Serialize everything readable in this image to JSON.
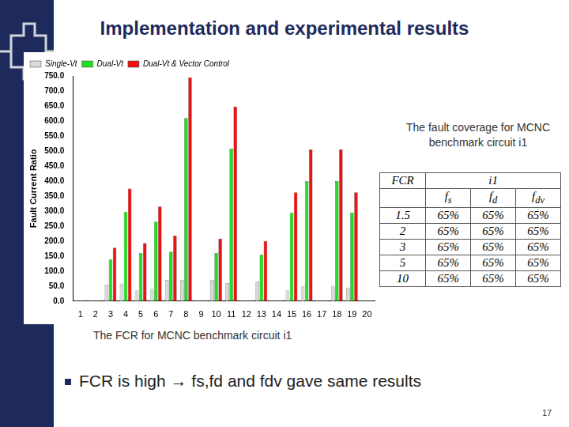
{
  "slide": {
    "title": "Implementation and experimental results",
    "chart_caption": "The FCR for MCNC benchmark circuit i1",
    "table_caption": "The fault coverage for MCNC benchmark circuit i1",
    "bullet": "FCR is high → fs,fd and fdv gave same results",
    "page_number": "17"
  },
  "table": {
    "header": [
      "FCR",
      "i1"
    ],
    "columns": [
      {
        "text": "f",
        "sub": "s"
      },
      {
        "text": "f",
        "sub": "d"
      },
      {
        "text": "f",
        "sub": "dv"
      }
    ],
    "rows": [
      [
        "1.5",
        "65%",
        "65%",
        "65%"
      ],
      [
        "2",
        "65%",
        "65%",
        "65%"
      ],
      [
        "3",
        "65%",
        "65%",
        "65%"
      ],
      [
        "5",
        "65%",
        "65%",
        "65%"
      ],
      [
        "10",
        "65%",
        "65%",
        "65%"
      ]
    ]
  },
  "chart_data": {
    "type": "bar",
    "y_label": "Fault Current Ratio",
    "categories": [
      "1",
      "2",
      "3",
      "4",
      "5",
      "6",
      "7",
      "8",
      "9",
      "10",
      "11",
      "12",
      "13",
      "14",
      "15",
      "16",
      "17",
      "18",
      "19",
      "20"
    ],
    "series": [
      {
        "name": "Single-Vt",
        "color": "#d9d9d9",
        "values": [
          2,
          2,
          55,
          58,
          35,
          40,
          70,
          70,
          2,
          70,
          60,
          2,
          65,
          2,
          35,
          50,
          2,
          50,
          45,
          2
        ]
      },
      {
        "name": "Dual-Vt",
        "color": "#22dd22",
        "values": [
          2,
          2,
          140,
          298,
          160,
          265,
          165,
          610,
          2,
          160,
          508,
          2,
          155,
          2,
          295,
          400,
          2,
          400,
          295,
          2
        ]
      },
      {
        "name": "Dual-Vt & Vector Control",
        "color": "#ee1111",
        "values": [
          2,
          2,
          178,
          375,
          193,
          315,
          218,
          745,
          2,
          208,
          648,
          2,
          200,
          2,
          362,
          505,
          2,
          505,
          362,
          2
        ]
      }
    ],
    "ylim": [
      0,
      750
    ],
    "yticks": [
      {
        "value": 0,
        "label": "0.0"
      },
      {
        "value": 50,
        "label": "50.0"
      },
      {
        "value": 100,
        "label": "100.0"
      },
      {
        "value": 150,
        "label": "150.0"
      },
      {
        "value": 200,
        "label": "200.0"
      },
      {
        "value": 250,
        "label": "250.0"
      },
      {
        "value": 300,
        "label": "300.0"
      },
      {
        "value": 350,
        "label": "350.0"
      },
      {
        "value": 400,
        "label": "400.0"
      },
      {
        "value": 450,
        "label": "450.0"
      },
      {
        "value": 500,
        "label": "500.0"
      },
      {
        "value": 550,
        "label": "550.0"
      },
      {
        "value": 600,
        "label": "600.0"
      },
      {
        "value": 650,
        "label": "650.0"
      },
      {
        "value": 700,
        "label": "700.0"
      },
      {
        "value": 750,
        "label": "750.0"
      }
    ],
    "grid": false,
    "legend": "upper left"
  }
}
